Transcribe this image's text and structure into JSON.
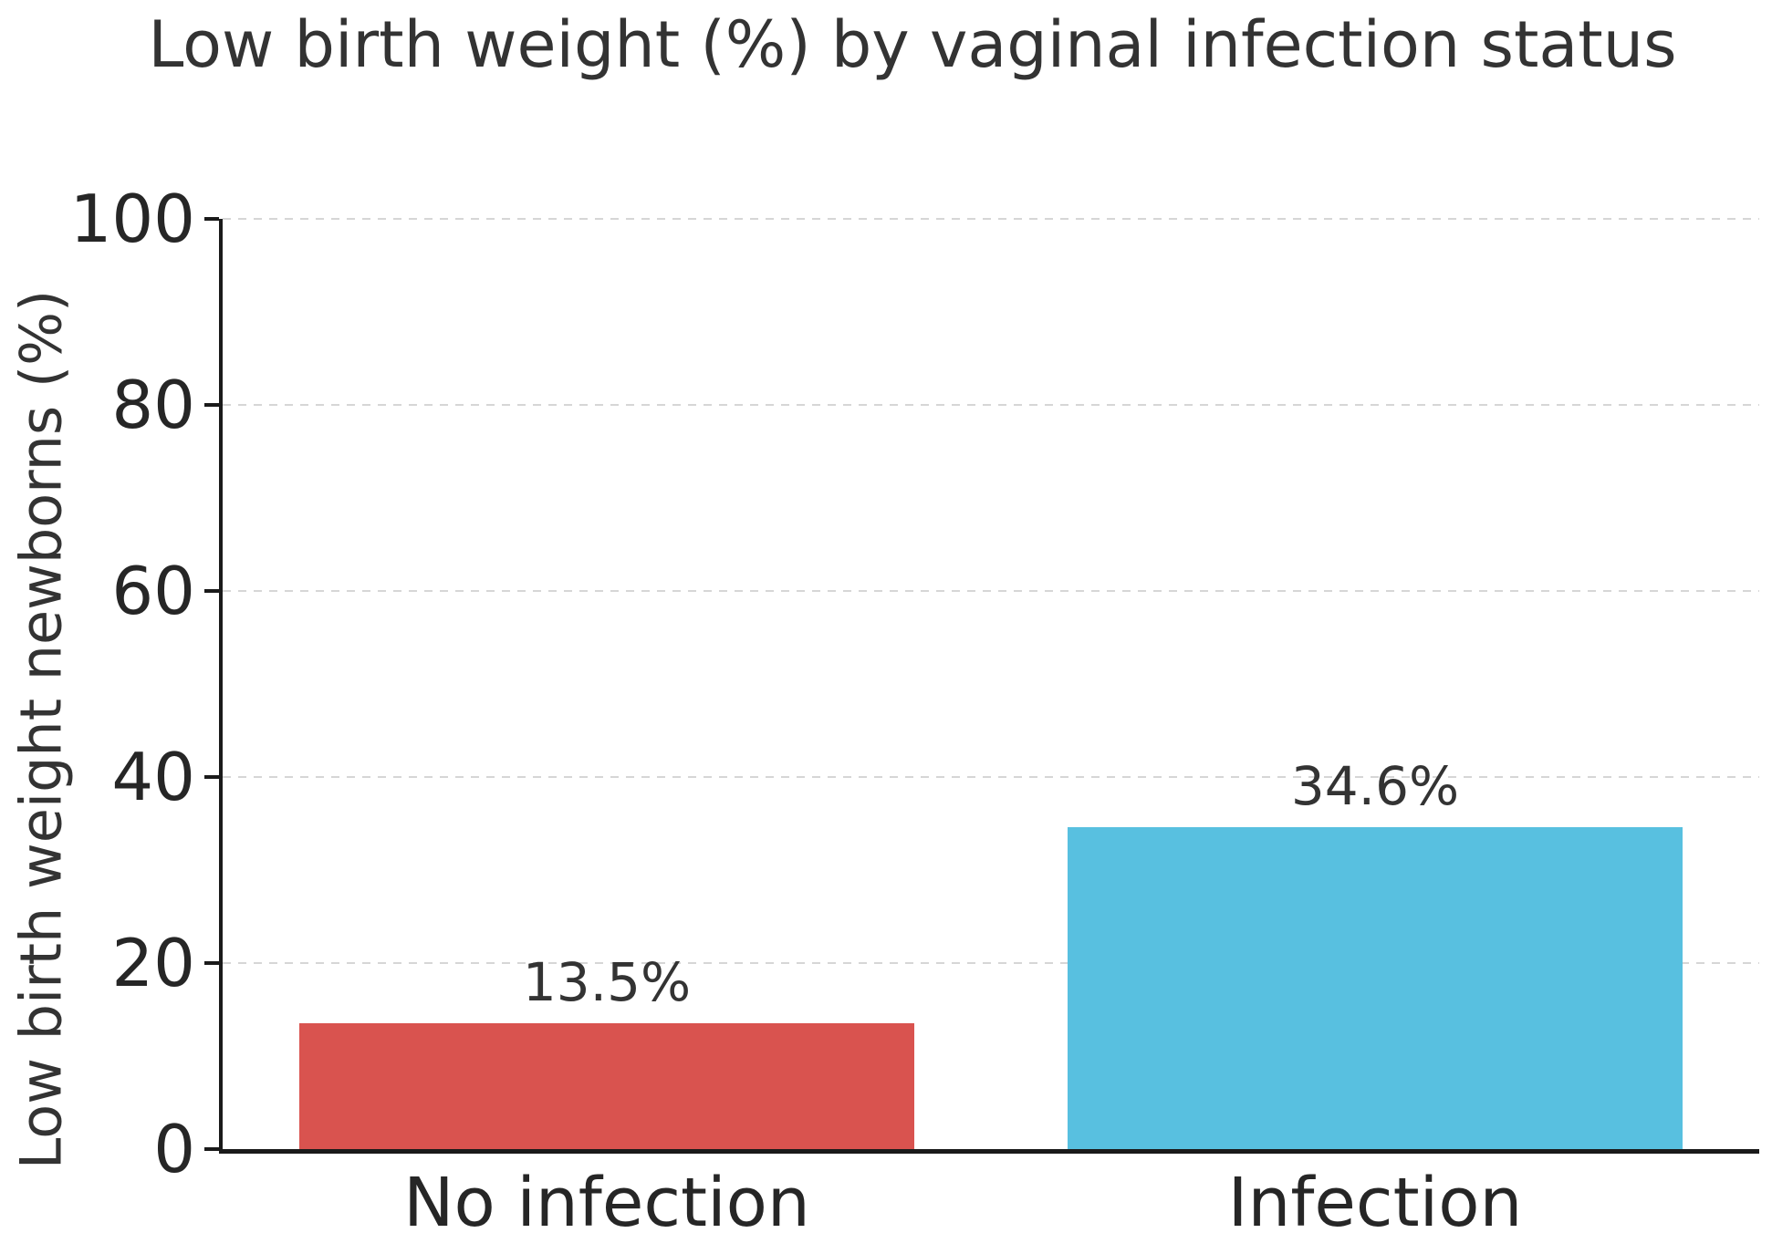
{
  "figure": {
    "title": "Low birth weight (%) by vaginal infection status",
    "y_axis_label": "Low birth weight newborns (%)"
  },
  "chart_data": {
    "type": "bar",
    "title": "Low birth weight (%) by vaginal infection status",
    "xlabel": "",
    "ylabel": "Low birth weight newborns (%)",
    "categories": [
      "No infection",
      "Infection"
    ],
    "values": [
      13.5,
      34.6
    ],
    "bar_labels": [
      "13.5%",
      "34.6%"
    ],
    "bar_colors": [
      "#d9534f",
      "#58c0e0"
    ],
    "ylim": [
      0,
      100
    ],
    "yticks": [
      0,
      20,
      40,
      60,
      80,
      100
    ],
    "grid": "horizontal-dashed",
    "legend": "none",
    "colors": {
      "background": "#ffffff",
      "text": "#333333",
      "axis": "#1a1a1a",
      "gridline": "#d6d6d6"
    }
  }
}
